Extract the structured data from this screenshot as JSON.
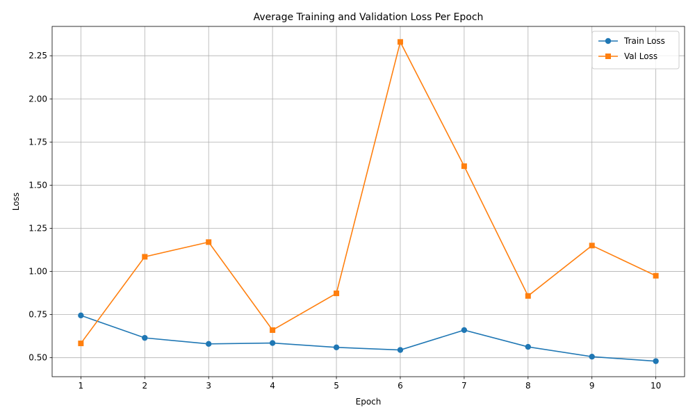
{
  "chart_data": {
    "type": "line",
    "title": "Average Training and Validation Loss Per Epoch",
    "xlabel": "Epoch",
    "ylabel": "Loss",
    "x": [
      1,
      2,
      3,
      4,
      5,
      6,
      7,
      8,
      9,
      10
    ],
    "xticks": [
      "1",
      "2",
      "3",
      "4",
      "5",
      "6",
      "7",
      "8",
      "9",
      "10"
    ],
    "yticks": [
      "0.50",
      "0.75",
      "1.00",
      "1.25",
      "1.50",
      "1.75",
      "2.00",
      "2.25"
    ],
    "xlim": [
      0.55,
      10.45
    ],
    "ylim": [
      0.39,
      2.42
    ],
    "grid": true,
    "legend_position": "top-right",
    "series": [
      {
        "name": "Train Loss",
        "color": "#1f77b4",
        "marker": "circle",
        "values": [
          0.745,
          0.615,
          0.58,
          0.585,
          0.56,
          0.545,
          0.66,
          0.563,
          0.506,
          0.48
        ]
      },
      {
        "name": "Val Loss",
        "color": "#ff7f0e",
        "marker": "square",
        "values": [
          0.583,
          1.085,
          1.17,
          0.66,
          0.873,
          2.33,
          1.61,
          0.858,
          1.15,
          0.975
        ]
      }
    ]
  }
}
